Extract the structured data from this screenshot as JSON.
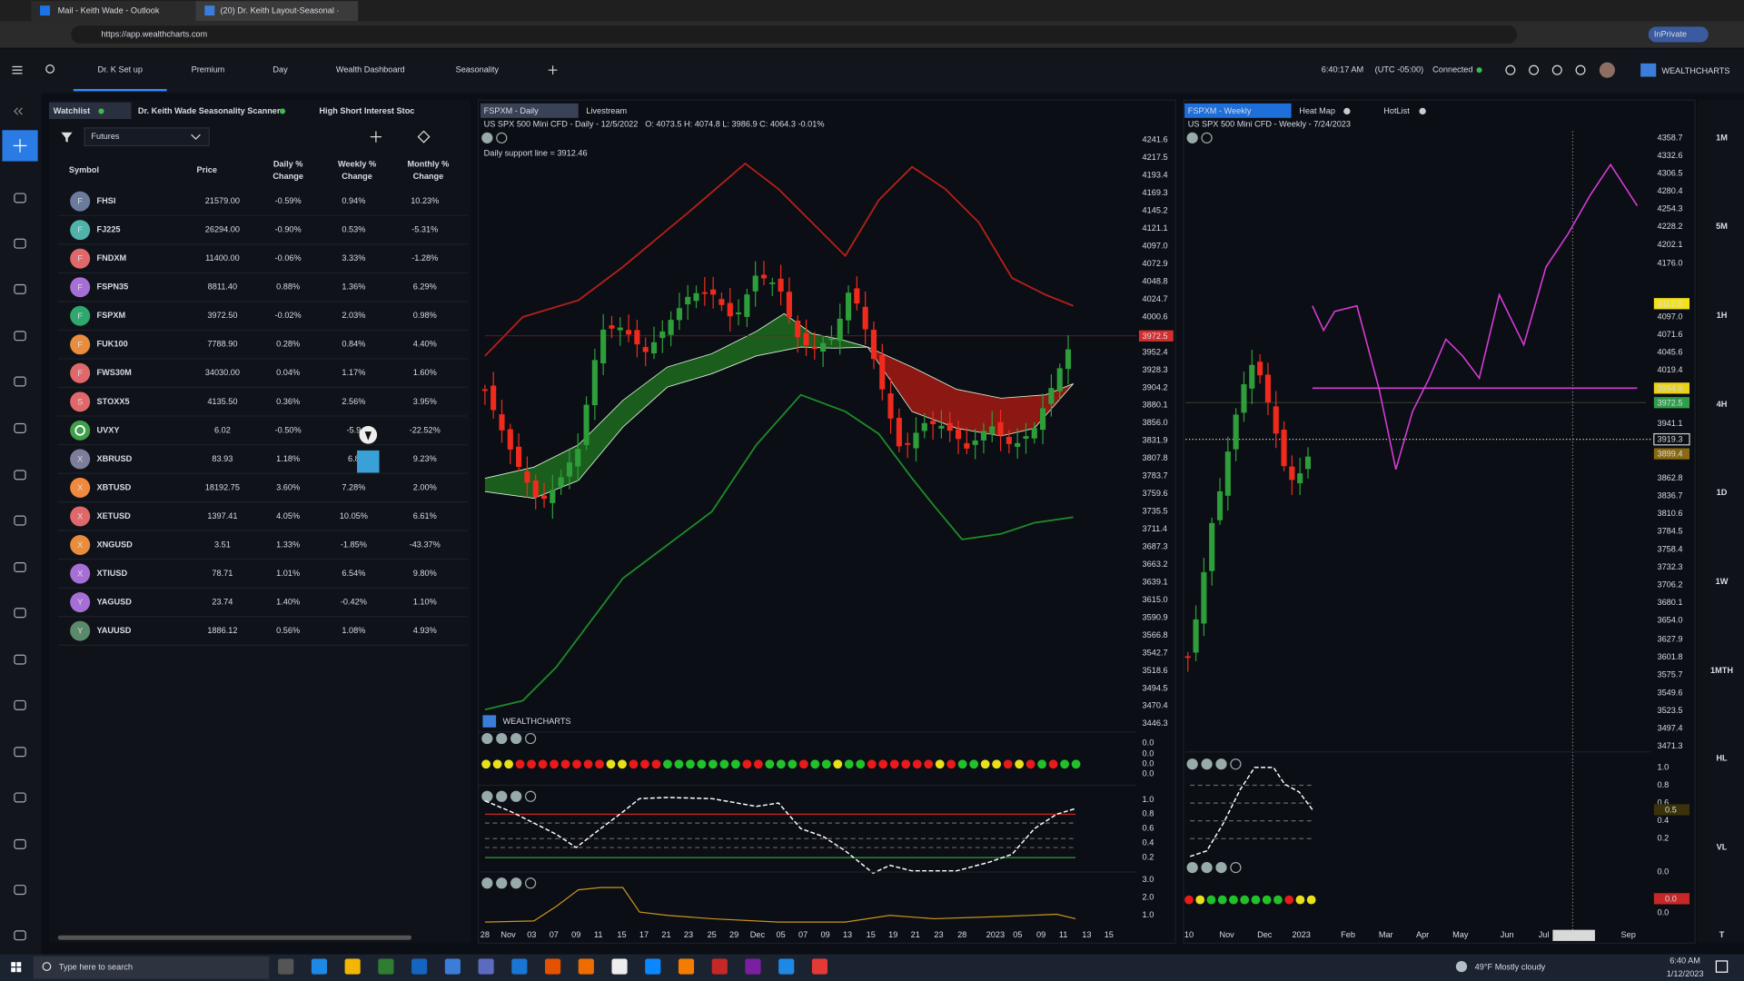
{
  "browser": {
    "tabs": [
      "Mail - Keith Wade - Outlook",
      "(20) Dr. Keith Layout-Seasonal ·"
    ],
    "url": "https://app.wealthcharts.com",
    "inprivate": "InPrivate"
  },
  "app": {
    "nav": [
      "Dr. K Set up",
      "Premium",
      "Day",
      "Wealth Dashboard",
      "Seasonality"
    ],
    "time": "6:40:17 AM",
    "timezone": "(UTC -05:00)",
    "status": "Connected",
    "brand": "WEALTHCHARTS"
  },
  "watchlist": {
    "tabs": [
      "Watchlist",
      "Dr. Keith Wade Seasonality Scanner",
      "High Short Interest Stoc"
    ],
    "filter": "Futures",
    "columns": [
      [
        "Symbol"
      ],
      [
        "Price"
      ],
      [
        "Daily %",
        "Change"
      ],
      [
        "Weekly %",
        "Change"
      ],
      [
        "Monthly %",
        "Change"
      ]
    ],
    "rows": [
      {
        "icon": "F",
        "symbol": "FHSI",
        "price": "21579.00",
        "daily": "-0.59%",
        "weekly": "0.94%",
        "monthly": "10.23%"
      },
      {
        "icon": "F",
        "symbol": "FJ225",
        "price": "26294.00",
        "daily": "-0.90%",
        "weekly": "0.53%",
        "monthly": "-5.31%"
      },
      {
        "icon": "F",
        "symbol": "FNDXM",
        "price": "11400.00",
        "daily": "-0.06%",
        "weekly": "3.33%",
        "monthly": "-1.28%"
      },
      {
        "icon": "F",
        "symbol": "FSPN35",
        "price": "8811.40",
        "daily": "0.88%",
        "weekly": "1.36%",
        "monthly": "6.29%"
      },
      {
        "icon": "F",
        "symbol": "FSPXM",
        "price": "3972.50",
        "daily": "-0.02%",
        "weekly": "2.03%",
        "monthly": "0.98%"
      },
      {
        "icon": "F",
        "symbol": "FUK100",
        "price": "7788.90",
        "daily": "0.28%",
        "weekly": "0.84%",
        "monthly": "4.40%"
      },
      {
        "icon": "F",
        "symbol": "FWS30M",
        "price": "34030.00",
        "daily": "0.04%",
        "weekly": "1.17%",
        "monthly": "1.60%"
      },
      {
        "icon": "S",
        "symbol": "STOXX5",
        "price": "4135.50",
        "daily": "0.36%",
        "weekly": "2.56%",
        "monthly": "3.95%"
      },
      {
        "symbol": "UVXY",
        "price": "6.02",
        "daily": "-0.50%",
        "weekly": "-5.9",
        "monthly": "-22.52%"
      },
      {
        "icon": "X",
        "symbol": "XBRUSD",
        "price": "83.93",
        "daily": "1.18%",
        "weekly": "6.8",
        "monthly": "9.23%"
      },
      {
        "icon": "X",
        "symbol": "XBTUSD",
        "price": "18192.75",
        "daily": "3.60%",
        "weekly": "7.28%",
        "monthly": "2.00%"
      },
      {
        "icon": "X",
        "symbol": "XETUSD",
        "price": "1397.41",
        "daily": "4.05%",
        "weekly": "10.05%",
        "monthly": "6.61%"
      },
      {
        "icon": "X",
        "symbol": "XNGUSD",
        "price": "3.51",
        "daily": "1.33%",
        "weekly": "-1.85%",
        "monthly": "-43.37%"
      },
      {
        "icon": "X",
        "symbol": "XTIUSD",
        "price": "78.71",
        "daily": "1.01%",
        "weekly": "6.54%",
        "monthly": "9.80%"
      },
      {
        "icon": "Y",
        "symbol": "YAGUSD",
        "price": "23.74",
        "daily": "1.40%",
        "weekly": "-0.42%",
        "monthly": "1.10%"
      },
      {
        "icon": "Y",
        "symbol": "YAUUSD",
        "price": "1886.12",
        "daily": "0.56%",
        "weekly": "1.08%",
        "monthly": "4.93%"
      }
    ]
  },
  "chart_daily": {
    "tabs": [
      "FSPXM - Daily",
      "Livestream"
    ],
    "info": "US SPX 500 Mini CFD - Daily - 12/5/2022",
    "ohlc": "O: 4073.5 H: 4074.8 L: 3986.9 C: 4064.3 -0.01%",
    "annotation": "Daily support line = 3912.46",
    "price_tag": "3972.5",
    "price_labels": [
      "4241.6",
      "4217.5",
      "4193.4",
      "4169.3",
      "4145.2",
      "4121.1",
      "4097.0",
      "4072.9",
      "4048.8",
      "4024.7",
      "4000.6",
      "3952.4",
      "3928.3",
      "3904.2",
      "3880.1",
      "3856.0",
      "3831.9",
      "3807.8",
      "3783.7",
      "3759.6",
      "3735.5",
      "3711.4",
      "3687.3",
      "3663.2",
      "3639.1",
      "3615.0",
      "3590.9",
      "3566.8",
      "3542.7",
      "3518.6",
      "3494.5",
      "3470.4",
      "3446.3"
    ],
    "date_labels": [
      "28",
      "Nov",
      "03",
      "07",
      "09",
      "11",
      "15",
      "17",
      "21",
      "23",
      "25",
      "29",
      "Dec",
      "05",
      "07",
      "09",
      "13",
      "15",
      "19",
      "21",
      "23",
      "28",
      "2023",
      "05",
      "09",
      "11",
      "13",
      "15"
    ],
    "indicator_labels": [
      "0.0",
      "0.0",
      "0.0",
      "0.0",
      "1.0",
      "0.8",
      "0.6",
      "0.4",
      "0.2",
      "3.0",
      "2.0",
      "1.0"
    ],
    "watermark": "WEALTHCHARTS"
  },
  "chart_weekly": {
    "tabs": [
      "FSPXM - Weekly",
      "Heat Map",
      "HotList"
    ],
    "info": "US SPX 500 Mini CFD - Weekly - 7/24/2023",
    "price_labels": [
      "4358.7",
      "4332.6",
      "4306.5",
      "4280.4",
      "4254.3",
      "4228.2",
      "4202.1",
      "4176.0",
      "4097.0",
      "4071.6",
      "4045.6",
      "4019.4",
      "3941.1",
      "3862.8",
      "3836.7",
      "3810.6",
      "3784.5",
      "3758.4",
      "3732.3",
      "3706.2",
      "3680.1",
      "3654.0",
      "3627.9",
      "3601.8",
      "3575.7",
      "3549.6",
      "3523.5",
      "3497.4",
      "3471.3"
    ],
    "price_tags": [
      "4117.8",
      "3994.9",
      "3972.5",
      "3919.3",
      "3899.4"
    ],
    "indicator_labels": [
      "1.0",
      "0.8",
      "0.6",
      "0.4",
      "0.2",
      "0.0",
      "0.0"
    ],
    "indicator_tags": [
      "0.5",
      "0.0"
    ],
    "date_labels": [
      "10",
      "Nov",
      "Dec",
      "2023",
      "Feb",
      "Mar",
      "Apr",
      "May",
      "Jun",
      "Jul",
      "Sep"
    ],
    "cursor_date": "7/24/2023"
  },
  "timeframes": [
    "1M",
    "5M",
    "1H",
    "4H",
    "1D",
    "1W",
    "1MTH",
    "HL",
    "VL",
    "T"
  ],
  "taskbar": {
    "search": "Type here to search",
    "weather": "49°F Mostly cloudy",
    "time": "6:40 AM",
    "date": "1/12/2023"
  }
}
